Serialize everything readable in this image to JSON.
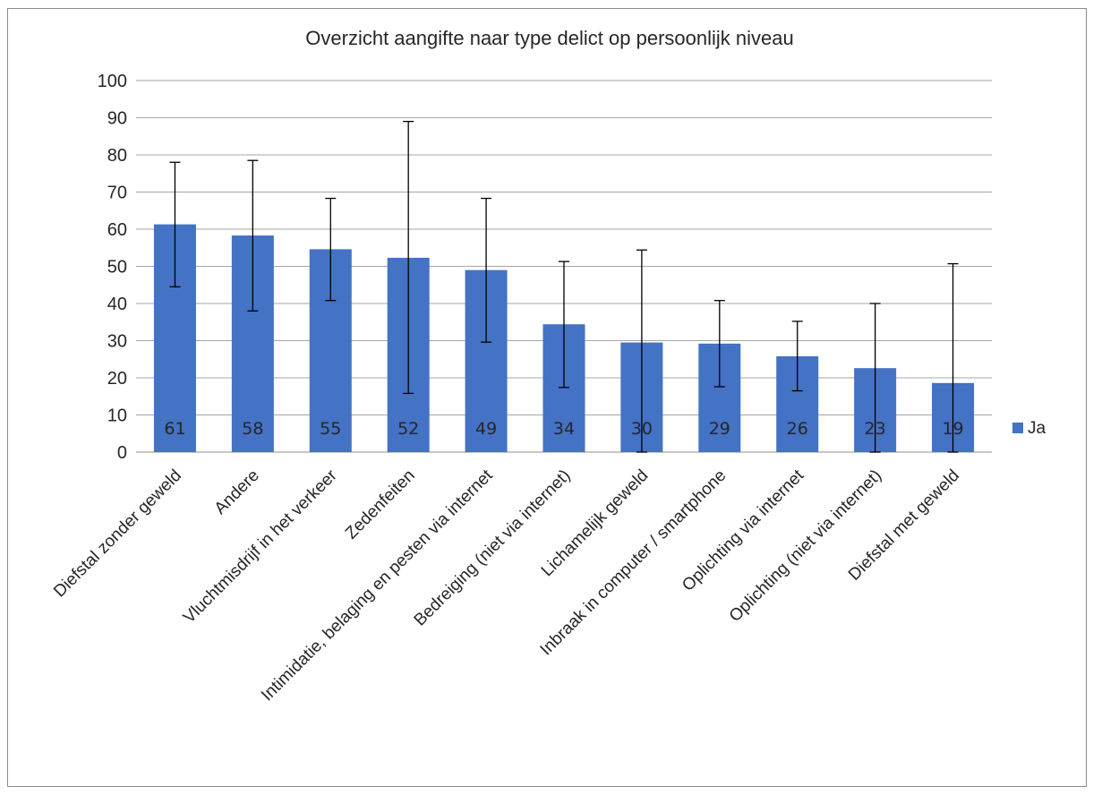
{
  "chart_data": {
    "type": "bar",
    "title": "Overzicht aangifte naar type delict op persoonlijk niveau",
    "xlabel": "",
    "ylabel": "",
    "ylim": [
      0,
      100
    ],
    "yticks": [
      0,
      10,
      20,
      30,
      40,
      50,
      60,
      70,
      80,
      90,
      100
    ],
    "grid": true,
    "legend_position": "right",
    "categories": [
      "Diefstal zonder geweld",
      "Andere",
      "Vluchtmisdrijf in het verkeer",
      "Zedenfeiten",
      "Intimidatie, belaging en pesten via internet",
      "Bedreiging (niet via internet)",
      "Lichamelijk geweld",
      "Inbraak in computer / smartphone",
      "Oplichting via internet",
      "Oplichting (niet via internet)",
      "Diefstal met geweld"
    ],
    "series": [
      {
        "name": "Ja",
        "color": "#4472c4",
        "values": [
          61.3,
          58.3,
          54.6,
          52.3,
          49.0,
          34.4,
          29.5,
          29.2,
          25.8,
          22.6,
          18.6
        ],
        "data_labels": [
          "61",
          "58",
          "55",
          "52",
          "49",
          "34",
          "30",
          "29",
          "26",
          "23",
          "19"
        ],
        "error_low": [
          44.5,
          38.0,
          40.8,
          15.8,
          29.6,
          17.4,
          0.0,
          17.6,
          16.5,
          0.0,
          0.0
        ],
        "error_high": [
          78.0,
          78.5,
          68.3,
          89.0,
          68.3,
          51.3,
          54.4,
          40.8,
          35.2,
          40.0,
          50.7
        ]
      }
    ]
  }
}
